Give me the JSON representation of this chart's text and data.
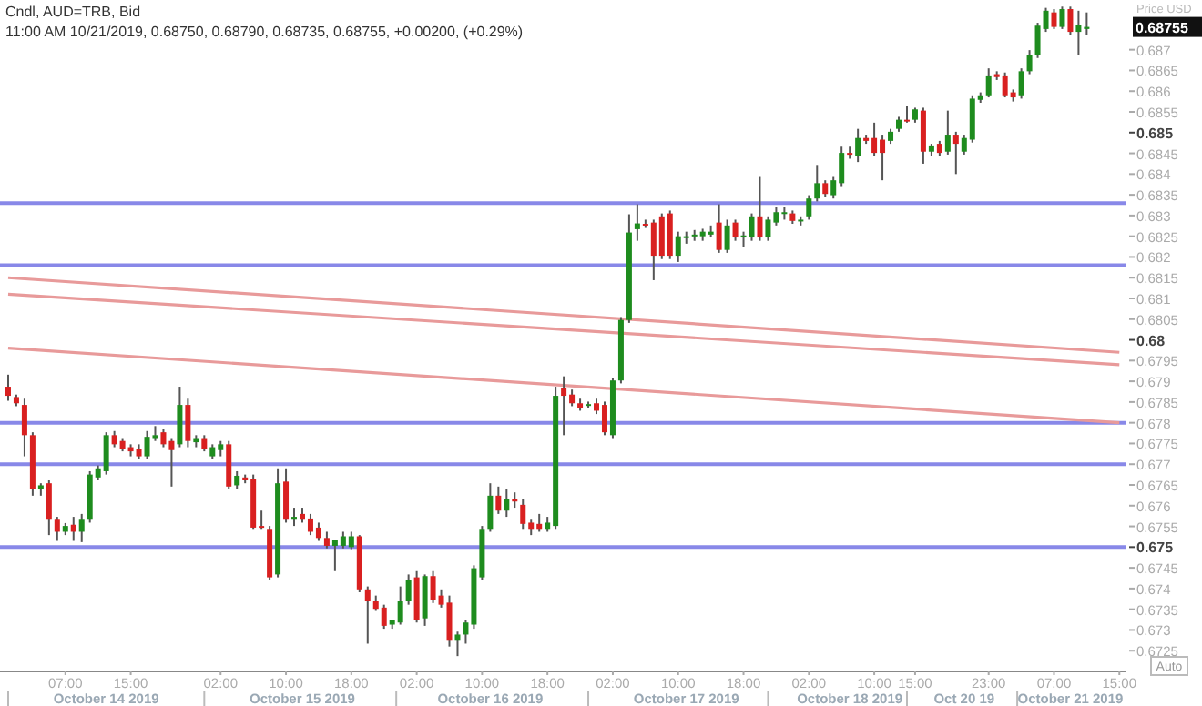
{
  "chart_data": {
    "type": "candlestick",
    "title": "Cndl, AUD=TRB, Bid",
    "subtitle": "11:00 AM 10/21/2019, 0.68750, 0.68790, 0.68735, 0.68755, +0.00200, (+0.29%)",
    "ylabel": "Price USD",
    "categories": [
      null,
      null,
      null,
      null,
      null,
      null,
      null,
      "07:00",
      null,
      null,
      null,
      null,
      "\nOctober 14 2019",
      null,
      null,
      "15:00",
      null,
      null,
      null,
      null,
      null,
      null,
      null,
      null,
      null,
      null,
      "02:00",
      null,
      null,
      null,
      null,
      null,
      null,
      null,
      "10:00",
      null,
      "\nOctober 15 2019",
      null,
      null,
      null,
      null,
      null,
      "18:00",
      null,
      null,
      null,
      null,
      null,
      null,
      null,
      "02:00",
      null,
      null,
      null,
      null,
      null,
      null,
      null,
      "10:00",
      "\nOctober 16 2019",
      null,
      null,
      null,
      null,
      null,
      null,
      "18:00",
      null,
      null,
      null,
      null,
      null,
      null,
      null,
      "02:00",
      null,
      null,
      null,
      null,
      null,
      null,
      null,
      "10:00",
      "\nOctober 17 2019",
      null,
      null,
      null,
      null,
      null,
      null,
      "18:00",
      null,
      null,
      null,
      null,
      null,
      null,
      null,
      "02:00",
      null,
      null,
      null,
      null,
      "\nOctober 18 2019",
      null,
      null,
      "10:00",
      null,
      null,
      null,
      null,
      "15:00",
      null,
      null,
      null,
      null,
      null,
      "\nOct 20 19",
      null,
      null,
      "23:00",
      null,
      null,
      null,
      null,
      null,
      null,
      null,
      "07:00",
      null,
      "\nOctober 21 2019",
      null,
      null,
      null,
      null,
      null,
      "15:00"
    ],
    "ohlc": [
      [
        0.67887,
        0.67916,
        0.67853,
        0.67865
      ],
      [
        0.67862,
        0.67868,
        0.6784,
        0.67847
      ],
      [
        0.67843,
        0.67858,
        0.67719,
        0.6777
      ],
      [
        0.6777,
        0.67777,
        0.67624,
        0.67639
      ],
      [
        0.67639,
        0.67654,
        0.67624,
        0.67649
      ],
      [
        0.67654,
        0.67661,
        0.67529,
        0.67566
      ],
      [
        0.67566,
        0.67573,
        0.67515,
        0.67537
      ],
      [
        0.67537,
        0.67558,
        0.67529,
        0.67551
      ],
      [
        0.67554,
        0.67573,
        0.67515,
        0.67537
      ],
      [
        0.67537,
        0.6758,
        0.67512,
        0.67566
      ],
      [
        0.67566,
        0.67683,
        0.67559,
        0.67675
      ],
      [
        0.67668,
        0.67697,
        0.67661,
        0.6769
      ],
      [
        0.67683,
        0.67777,
        0.67675,
        0.6777
      ],
      [
        0.6777,
        0.6778,
        0.67741,
        0.67748
      ],
      [
        0.67756,
        0.67763,
        0.67731,
        0.67737
      ],
      [
        0.67741,
        0.67748,
        0.67719,
        0.67731
      ],
      [
        0.67737,
        0.67748,
        0.67712,
        0.67719
      ],
      [
        0.67719,
        0.6778,
        0.67712,
        0.67766
      ],
      [
        0.67763,
        0.67792,
        0.67756,
        0.6777
      ],
      [
        0.67777,
        0.67785,
        0.67741,
        0.67748
      ],
      [
        0.67756,
        0.67763,
        0.67646,
        0.67734
      ],
      [
        0.67748,
        0.67887,
        0.67741,
        0.67843
      ],
      [
        0.67843,
        0.67858,
        0.67741,
        0.67756
      ],
      [
        0.67753,
        0.6777,
        0.67741,
        0.67763
      ],
      [
        0.67763,
        0.6777,
        0.67731,
        0.67737
      ],
      [
        0.67719,
        0.67748,
        0.67712,
        0.67741
      ],
      [
        0.67734,
        0.67756,
        0.67719,
        0.67748
      ],
      [
        0.67748,
        0.67756,
        0.67639,
        0.67646
      ],
      [
        0.67649,
        0.67683,
        0.67639,
        0.67672
      ],
      [
        0.67668,
        0.67675,
        0.67654,
        0.67661
      ],
      [
        0.67664,
        0.67675,
        0.67544,
        0.67547
      ],
      [
        0.67551,
        0.67588,
        0.67544,
        0.67549
      ],
      [
        0.67544,
        0.67551,
        0.6742,
        0.67427
      ],
      [
        0.67434,
        0.6769,
        0.67427,
        0.67654
      ],
      [
        0.67658,
        0.6769,
        0.67559,
        0.67566
      ],
      [
        0.67566,
        0.67595,
        0.67551,
        0.67573
      ],
      [
        0.6758,
        0.67595,
        0.67559,
        0.67566
      ],
      [
        0.67569,
        0.6758,
        0.67529,
        0.67537
      ],
      [
        0.67547,
        0.67559,
        0.67515,
        0.67522
      ],
      [
        0.67522,
        0.67537,
        0.67497,
        0.67503
      ],
      [
        0.67503,
        0.67518,
        0.67442,
        0.67518
      ],
      [
        0.67503,
        0.67537,
        0.67497,
        0.67526
      ],
      [
        0.675,
        0.67537,
        0.67495,
        0.67526
      ],
      [
        0.67526,
        0.67529,
        0.67391,
        0.67398
      ],
      [
        0.67398,
        0.67405,
        0.67267,
        0.67369
      ],
      [
        0.67369,
        0.67383,
        0.67346,
        0.67351
      ],
      [
        0.67354,
        0.67361,
        0.67303,
        0.6731
      ],
      [
        0.67313,
        0.67325,
        0.67303,
        0.67325
      ],
      [
        0.67318,
        0.67405,
        0.67313,
        0.67369
      ],
      [
        0.67369,
        0.67434,
        0.67361,
        0.6742
      ],
      [
        0.67427,
        0.67442,
        0.67318,
        0.67325
      ],
      [
        0.67328,
        0.67434,
        0.6731,
        0.6743
      ],
      [
        0.6743,
        0.67442,
        0.67365,
        0.67372
      ],
      [
        0.67383,
        0.67398,
        0.67354,
        0.67361
      ],
      [
        0.67366,
        0.67383,
        0.6726,
        0.67274
      ],
      [
        0.67274,
        0.67296,
        0.67237,
        0.67289
      ],
      [
        0.67289,
        0.67325,
        0.67267,
        0.67318
      ],
      [
        0.67313,
        0.67456,
        0.67303,
        0.67449
      ],
      [
        0.67427,
        0.67551,
        0.6742,
        0.67544
      ],
      [
        0.67544,
        0.67654,
        0.67537,
        0.67624
      ],
      [
        0.67624,
        0.67646,
        0.6758,
        0.67588
      ],
      [
        0.67588,
        0.67639,
        0.67573,
        0.67617
      ],
      [
        0.67617,
        0.67632,
        0.67595,
        0.6761
      ],
      [
        0.67602,
        0.67617,
        0.67544,
        0.67556
      ],
      [
        0.67559,
        0.67566,
        0.67529,
        0.67544
      ],
      [
        0.67556,
        0.6758,
        0.67537,
        0.67544
      ],
      [
        0.67544,
        0.67573,
        0.67537,
        0.67559
      ],
      [
        0.67551,
        0.67887,
        0.67544,
        0.67865
      ],
      [
        0.67883,
        0.67912,
        0.6777,
        0.67865
      ],
      [
        0.67868,
        0.6788,
        0.6784,
        0.67847
      ],
      [
        0.67847,
        0.67858,
        0.67829,
        0.67836
      ],
      [
        0.67843,
        0.67851,
        0.67836,
        0.67845
      ],
      [
        0.67847,
        0.67858,
        0.67821,
        0.67829
      ],
      [
        0.67843,
        0.67851,
        0.6777,
        0.67777
      ],
      [
        0.6777,
        0.67909,
        0.67763,
        0.67902
      ],
      [
        0.67902,
        0.68055,
        0.67895,
        0.68048
      ],
      [
        0.68048,
        0.68303,
        0.68041,
        0.68259
      ],
      [
        0.68267,
        0.68327,
        0.68239,
        0.68281
      ],
      [
        0.6828,
        0.6829,
        0.6827,
        0.68278
      ],
      [
        0.68283,
        0.6829,
        0.68144,
        0.68203
      ],
      [
        0.68298,
        0.68305,
        0.68195,
        0.68203
      ],
      [
        0.68305,
        0.68312,
        0.68195,
        0.68203
      ],
      [
        0.68203,
        0.68261,
        0.68188,
        0.6825
      ],
      [
        0.68247,
        0.68261,
        0.68232,
        0.6825
      ],
      [
        0.6825,
        0.68265,
        0.68239,
        0.68254
      ],
      [
        0.6825,
        0.68268,
        0.68239,
        0.68261
      ],
      [
        0.68254,
        0.68276,
        0.68247,
        0.68261
      ],
      [
        0.68283,
        0.68327,
        0.6821,
        0.68217
      ],
      [
        0.68217,
        0.6829,
        0.6821,
        0.68276
      ],
      [
        0.68283,
        0.6829,
        0.68239,
        0.68247
      ],
      [
        0.68247,
        0.68261,
        0.68225,
        0.68252
      ],
      [
        0.68247,
        0.68305,
        0.68239,
        0.68298
      ],
      [
        0.68298,
        0.68393,
        0.68239,
        0.68247
      ],
      [
        0.68247,
        0.68298,
        0.68239,
        0.6829
      ],
      [
        0.68283,
        0.6832,
        0.68276,
        0.68308
      ],
      [
        0.68305,
        0.6832,
        0.6829,
        0.68308
      ],
      [
        0.68305,
        0.68312,
        0.6828,
        0.68287
      ],
      [
        0.68287,
        0.68298,
        0.68276,
        0.6829
      ],
      [
        0.68298,
        0.68349,
        0.6829,
        0.68341
      ],
      [
        0.68341,
        0.68422,
        0.68334,
        0.68378
      ],
      [
        0.68378,
        0.68385,
        0.68345,
        0.68352
      ],
      [
        0.68349,
        0.68393,
        0.68341,
        0.68385
      ],
      [
        0.68378,
        0.68466,
        0.68371,
        0.68451
      ],
      [
        0.68451,
        0.68466,
        0.68437,
        0.68448
      ],
      [
        0.68444,
        0.68509,
        0.68429,
        0.68487
      ],
      [
        0.68487,
        0.68495,
        0.68473,
        0.6848
      ],
      [
        0.68487,
        0.68524,
        0.68444,
        0.68451
      ],
      [
        0.68483,
        0.68495,
        0.68385,
        0.68451
      ],
      [
        0.6848,
        0.68509,
        0.68473,
        0.68502
      ],
      [
        0.68509,
        0.68538,
        0.68502,
        0.68531
      ],
      [
        0.68531,
        0.68565,
        0.68524,
        0.68528
      ],
      [
        0.68531,
        0.6856,
        0.68524,
        0.68556
      ],
      [
        0.68553,
        0.6856,
        0.68425,
        0.68454
      ],
      [
        0.68454,
        0.68473,
        0.68444,
        0.68469
      ],
      [
        0.68473,
        0.6848,
        0.68444,
        0.68451
      ],
      [
        0.68454,
        0.68553,
        0.68447,
        0.68495
      ],
      [
        0.68495,
        0.68502,
        0.684,
        0.68473
      ],
      [
        0.68454,
        0.68495,
        0.68447,
        0.68487
      ],
      [
        0.68483,
        0.6859,
        0.68476,
        0.68582
      ],
      [
        0.68579,
        0.68597,
        0.68572,
        0.6859
      ],
      [
        0.6859,
        0.68655,
        0.68585,
        0.68638
      ],
      [
        0.68641,
        0.68648,
        0.68627,
        0.68634
      ],
      [
        0.68638,
        0.68645,
        0.68585,
        0.6859
      ],
      [
        0.68597,
        0.68604,
        0.68575,
        0.68585
      ],
      [
        0.6859,
        0.68655,
        0.68582,
        0.68648
      ],
      [
        0.68648,
        0.68699,
        0.68641,
        0.68688
      ],
      [
        0.68688,
        0.68765,
        0.6868,
        0.68758
      ],
      [
        0.6875,
        0.68801,
        0.68743,
        0.68794
      ],
      [
        0.6879,
        0.68798,
        0.6875,
        0.68755
      ],
      [
        0.68755,
        0.68804,
        0.6875,
        0.68798
      ],
      [
        0.68798,
        0.68804,
        0.68736,
        0.68743
      ],
      [
        0.68743,
        0.68794,
        0.68688,
        0.6876
      ],
      [
        0.6875,
        0.6879,
        0.68735,
        0.68755
      ],
      null,
      null,
      null,
      null
    ],
    "series": [
      {
        "type": "line",
        "color": "#e89a9a",
        "values": [
          0.6815,
          null,
          null,
          null,
          null,
          null,
          null,
          null,
          null,
          null,
          null,
          null,
          null,
          null,
          null,
          null,
          null,
          null,
          null,
          null,
          null,
          null,
          null,
          null,
          null,
          null,
          null,
          null,
          null,
          null,
          null,
          null,
          null,
          null,
          null,
          null,
          null,
          null,
          null,
          null,
          null,
          null,
          null,
          null,
          null,
          null,
          null,
          null,
          null,
          null,
          null,
          null,
          null,
          null,
          null,
          null,
          null,
          null,
          null,
          null,
          null,
          null,
          null,
          null,
          null,
          null,
          null,
          null,
          null,
          null,
          null,
          null,
          null,
          null,
          null,
          null,
          null,
          null,
          null,
          null,
          null,
          null,
          null,
          null,
          null,
          null,
          null,
          null,
          null,
          null,
          null,
          null,
          null,
          null,
          null,
          null,
          null,
          null,
          null,
          null,
          null,
          null,
          null,
          null,
          null,
          null,
          null,
          null,
          null,
          null,
          null,
          null,
          null,
          null,
          null,
          null,
          null,
          null,
          null,
          null,
          null,
          null,
          null,
          null,
          null,
          null,
          null,
          null,
          null,
          null,
          null,
          null,
          null,
          null,
          null,
          null,
          0.6797
        ]
      },
      {
        "type": "line",
        "color": "#e89a9a",
        "values": [
          0.6811,
          null,
          null,
          null,
          null,
          null,
          null,
          null,
          null,
          null,
          null,
          null,
          null,
          null,
          null,
          null,
          null,
          null,
          null,
          null,
          null,
          null,
          null,
          null,
          null,
          null,
          null,
          null,
          null,
          null,
          null,
          null,
          null,
          null,
          null,
          null,
          null,
          null,
          null,
          null,
          null,
          null,
          null,
          null,
          null,
          null,
          null,
          null,
          null,
          null,
          null,
          null,
          null,
          null,
          null,
          null,
          null,
          null,
          null,
          null,
          null,
          null,
          null,
          null,
          null,
          null,
          null,
          null,
          null,
          null,
          null,
          null,
          null,
          null,
          null,
          null,
          null,
          null,
          null,
          null,
          null,
          null,
          null,
          null,
          null,
          null,
          null,
          null,
          null,
          null,
          null,
          null,
          null,
          null,
          null,
          null,
          null,
          null,
          null,
          null,
          null,
          null,
          null,
          null,
          null,
          null,
          null,
          null,
          null,
          null,
          null,
          null,
          null,
          null,
          null,
          null,
          null,
          null,
          null,
          null,
          null,
          null,
          null,
          null,
          null,
          null,
          null,
          null,
          null,
          null,
          null,
          null,
          null,
          null,
          null,
          null,
          0.6794
        ]
      },
      {
        "type": "line",
        "color": "#e89a9a",
        "values": [
          0.6798,
          null,
          null,
          null,
          null,
          null,
          null,
          null,
          null,
          null,
          null,
          null,
          null,
          null,
          null,
          null,
          null,
          null,
          null,
          null,
          null,
          null,
          null,
          null,
          null,
          null,
          null,
          null,
          null,
          null,
          null,
          null,
          null,
          null,
          null,
          null,
          null,
          null,
          null,
          null,
          null,
          null,
          null,
          null,
          null,
          null,
          null,
          null,
          null,
          null,
          null,
          null,
          null,
          null,
          null,
          null,
          null,
          null,
          null,
          null,
          null,
          null,
          null,
          null,
          null,
          null,
          null,
          null,
          null,
          null,
          null,
          null,
          null,
          null,
          null,
          null,
          null,
          null,
          null,
          null,
          null,
          null,
          null,
          null,
          null,
          null,
          null,
          null,
          null,
          null,
          null,
          null,
          null,
          null,
          null,
          null,
          null,
          null,
          null,
          null,
          null,
          null,
          null,
          null,
          null,
          null,
          null,
          null,
          null,
          null,
          null,
          null,
          null,
          null,
          null,
          null,
          null,
          null,
          null,
          null,
          null,
          null,
          null,
          null,
          null,
          null,
          null,
          null,
          null,
          null,
          null,
          null,
          null,
          null,
          null,
          null,
          0.678
        ]
      }
    ],
    "ref_lines": [
      {
        "axis": "y",
        "value": 0.6833,
        "color": "#8888e8"
      },
      {
        "axis": "y",
        "value": 0.6818,
        "color": "#8888e8"
      },
      {
        "axis": "y",
        "value": 0.678,
        "color": "#8888e8"
      },
      {
        "axis": "y",
        "value": 0.677,
        "color": "#8888e8"
      },
      {
        "axis": "y",
        "value": 0.675,
        "color": "#8888e8"
      }
    ],
    "ylim": [
      0.672,
      0.6882
    ],
    "yticks": [
      0.6725,
      0.673,
      0.6735,
      0.674,
      0.6745,
      0.675,
      0.6755,
      0.676,
      0.6765,
      0.677,
      0.6775,
      0.678,
      0.6785,
      0.679,
      0.6795,
      0.68,
      0.6805,
      0.681,
      0.6815,
      0.682,
      0.6825,
      0.683,
      0.6835,
      0.684,
      0.6845,
      0.685,
      0.6855,
      0.686,
      0.6865,
      0.687
    ],
    "annotations": [
      "0.68755",
      "Auto"
    ]
  }
}
